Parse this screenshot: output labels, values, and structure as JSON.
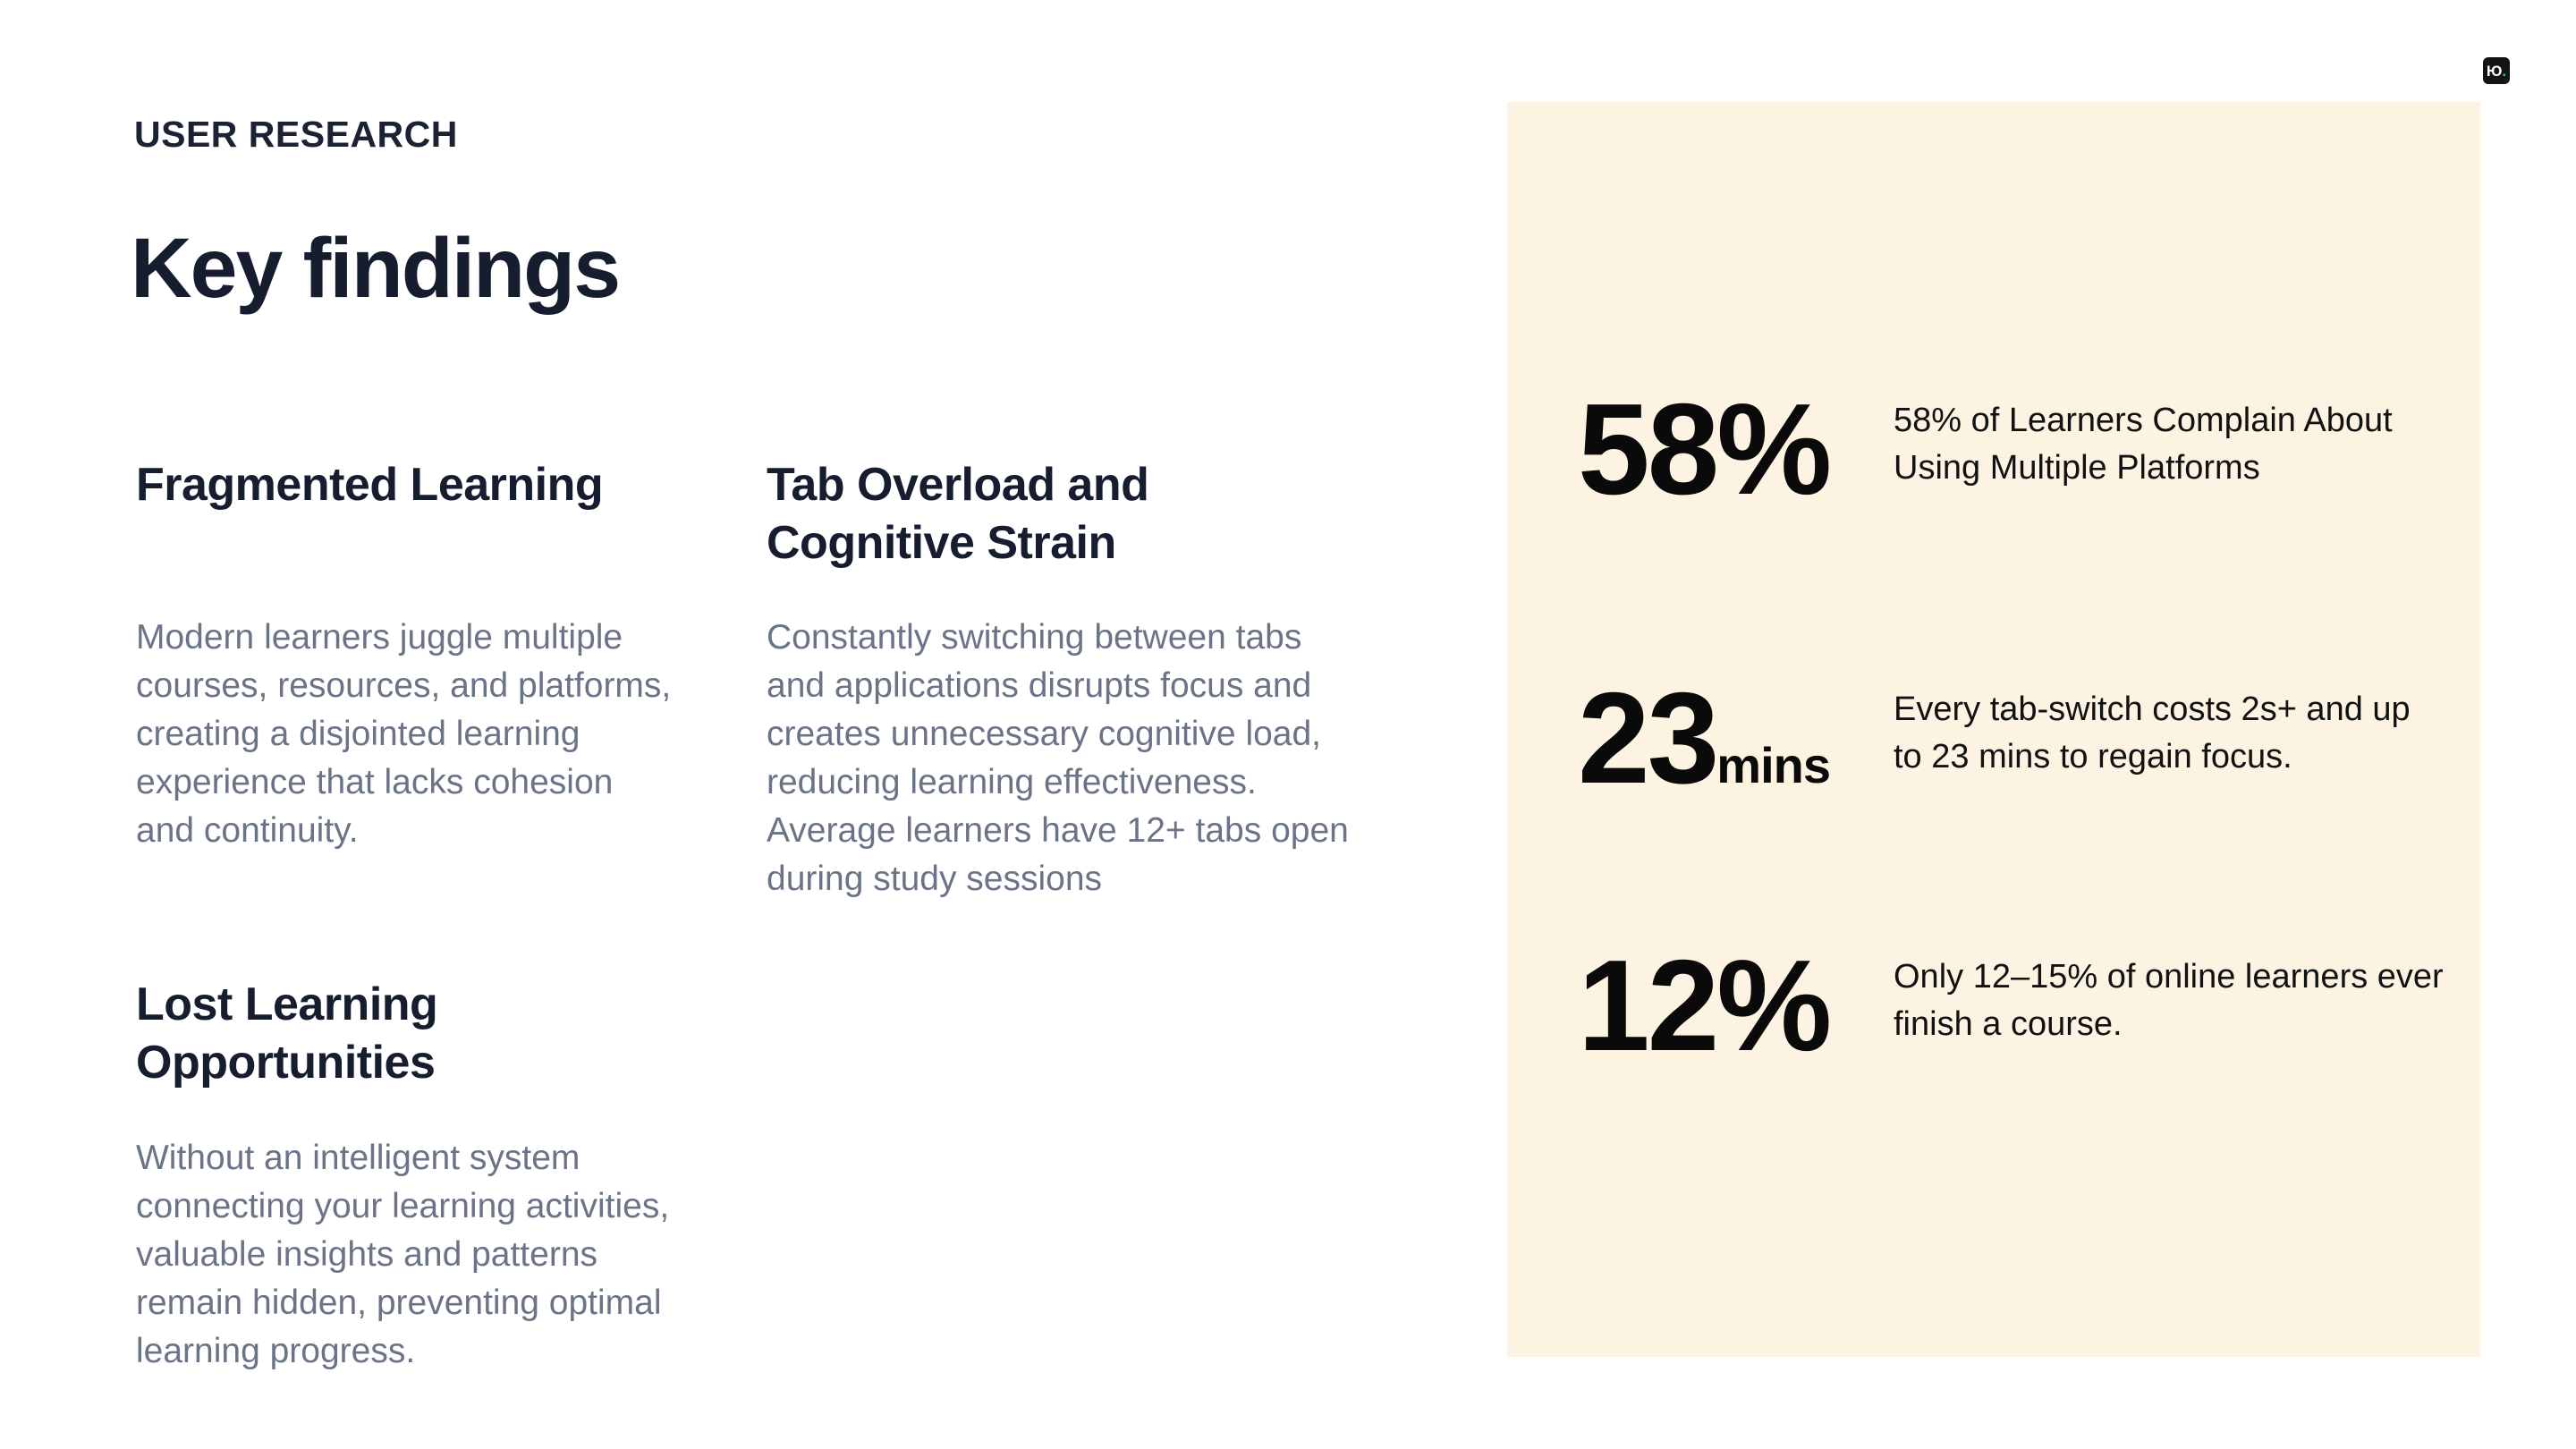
{
  "page": {
    "eyebrow": "USER RESEARCH",
    "title": "Key findings"
  },
  "columns": [
    {
      "heading": "Fragmented Learning",
      "body": "Modern learners juggle multiple\ncourses, resources, and platforms,\ncreating a disjointed learning\nexperience that lacks cohesion\nand continuity."
    },
    {
      "heading": "Tab Overload and\nCognitive Strain",
      "body": "Constantly switching between tabs\nand applications disrupts focus and\ncreates unnecessary cognitive load,\nreducing learning effectiveness.\nAverage learners have 12+ tabs open\nduring study sessions"
    },
    {
      "heading": "Lost Learning\nOpportunities",
      "body": "Without an intelligent system\nconnecting your learning activities,\nvaluable insights and patterns\nremain hidden, preventing optimal\nlearning progress."
    }
  ],
  "stats_panel": {
    "background": "#FCF3E2",
    "stats": [
      {
        "value": "58%",
        "unit": "",
        "description": "58% of Learners Complain About\nUsing Multiple Platforms"
      },
      {
        "value": "23",
        "unit": "mins",
        "description": "Every tab-switch costs 2s+ and up\nto 23 mins to regain focus."
      },
      {
        "value": "12%",
        "unit": "",
        "description": "Only 12–15% of online learners ever\nfinish a course."
      }
    ]
  },
  "logo": {
    "glyph": "Ю",
    "dot": ".",
    "background": "#141414",
    "dot_color": "#25C9C9"
  },
  "colors": {
    "page_background": "#FFFFFF",
    "heading_navy": "#161D2F",
    "body_gray": "#6B7487",
    "stat_black": "#0A0A0A",
    "panel_cream": "#FCF3E2"
  }
}
